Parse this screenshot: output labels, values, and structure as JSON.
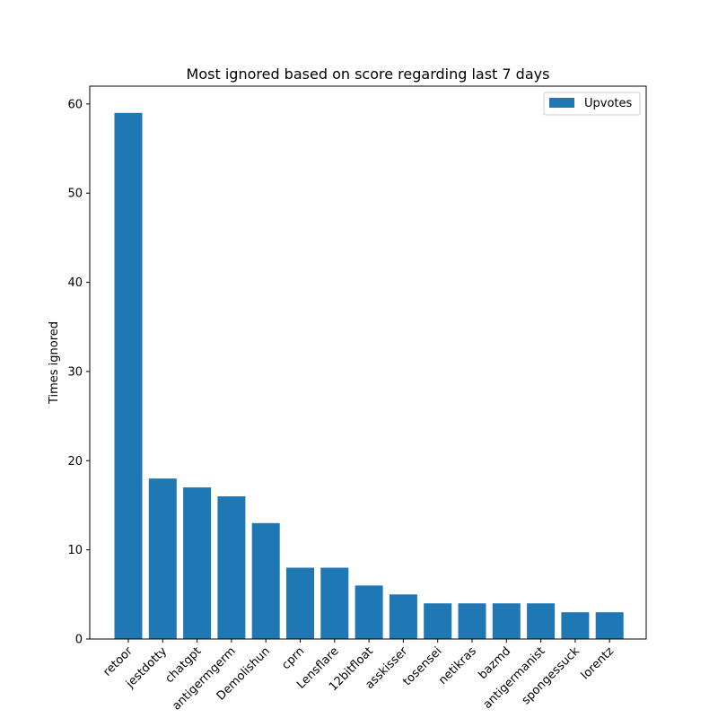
{
  "chart_data": {
    "type": "bar",
    "title": "Most ignored based on score regarding last 7 days",
    "xlabel": "",
    "ylabel": "Times ignored",
    "ylim": [
      0,
      62
    ],
    "yticks": [
      0,
      10,
      20,
      30,
      40,
      50,
      60
    ],
    "grid": false,
    "legend_position": "top-right",
    "categories": [
      "retoor",
      "jestdotty",
      "chatgpt",
      "antigermgerm",
      "Demolishun",
      "cprn",
      "Lensflare",
      "12bitfloat",
      "asskisser",
      "tosensei",
      "netikras",
      "bazmd",
      "antigermanist",
      "spongessuck",
      "lorentz"
    ],
    "series": [
      {
        "name": "Upvotes",
        "color": "#1f77b4",
        "values": [
          59,
          18,
          17,
          16,
          13,
          8,
          8,
          6,
          5,
          4,
          4,
          4,
          4,
          3,
          3
        ]
      }
    ]
  }
}
